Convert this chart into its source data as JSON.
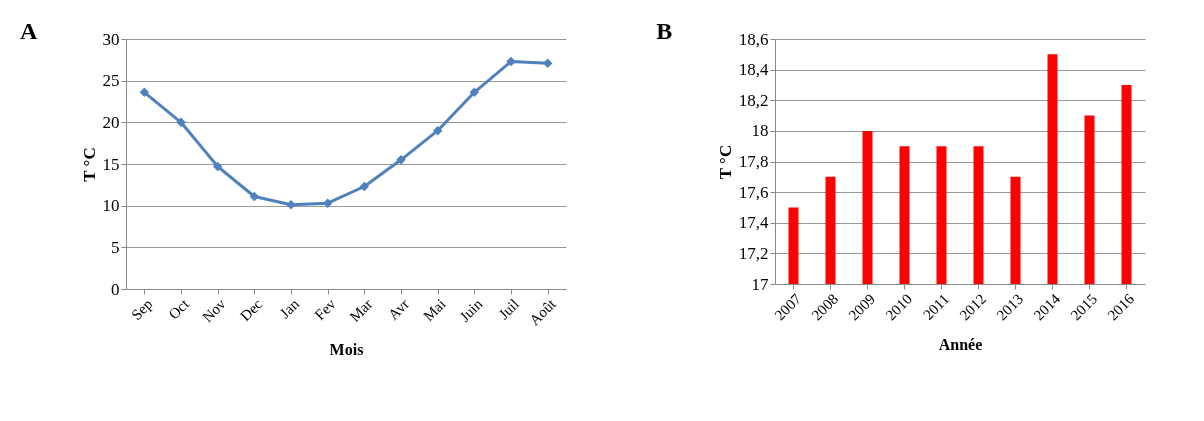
{
  "chart_data": [
    {
      "type": "line",
      "title": "A",
      "xlabel": "Mois",
      "ylabel": "T °C",
      "categories": [
        "Sep",
        "Oct",
        "Nov",
        "Dec",
        "Jan",
        "Fev",
        "Mar",
        "Avr",
        "Mai",
        "Juin",
        "Juil",
        "Août"
      ],
      "series": [
        {
          "color": "#4f81bd",
          "values": [
            23.6,
            20.0,
            14.7,
            11.1,
            10.1,
            10.3,
            12.3,
            15.5,
            19.0,
            23.6,
            27.3,
            27.1
          ]
        }
      ],
      "ylim": [
        0,
        30
      ],
      "yticks": [
        0,
        5,
        10,
        15,
        20,
        25,
        30
      ],
      "grid": "y",
      "marker": "diamond"
    },
    {
      "type": "bar",
      "title": "B",
      "xlabel": "Année",
      "ylabel": "T °C",
      "categories": [
        "2007",
        "2008",
        "2009",
        "2010",
        "2011",
        "2012",
        "2013",
        "2014",
        "2015",
        "2016"
      ],
      "series": [
        {
          "color": "#ff0000",
          "values": [
            17.5,
            17.7,
            18.0,
            17.9,
            17.9,
            17.9,
            17.7,
            18.5,
            18.1,
            18.3
          ]
        }
      ],
      "ylim": [
        17,
        18.6
      ],
      "yticks": [
        17,
        {
          "value": 17.2,
          "label": "17,2"
        },
        {
          "value": 17.4,
          "label": "17,4"
        },
        {
          "value": 17.6,
          "label": "17,6"
        },
        {
          "value": 17.8,
          "label": "17,8"
        },
        18,
        {
          "value": 18.2,
          "label": "18,2"
        },
        {
          "value": 18.4,
          "label": "18,4"
        },
        {
          "value": 18.6,
          "label": "18,6"
        }
      ],
      "grid": "y"
    }
  ]
}
